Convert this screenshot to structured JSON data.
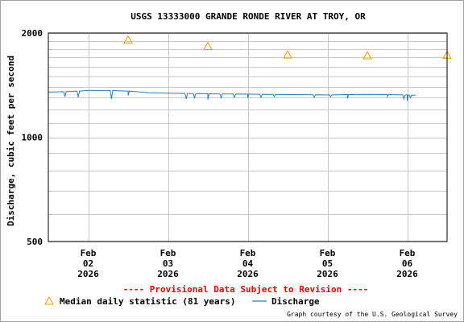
{
  "chart_data": {
    "type": "line",
    "title": "USGS 13333000 GRANDE RONDE RIVER AT TROY, OR",
    "ylabel": "Discharge, cubic feet per second",
    "xlabel": "",
    "yscale": "log",
    "ylim": [
      500,
      2000
    ],
    "y_ticks": [
      {
        "value": 500,
        "label": "500"
      },
      {
        "value": 1000,
        "label": "1000"
      },
      {
        "value": 2000,
        "label": "2000"
      }
    ],
    "y_minor_gridlines": [
      600,
      700,
      800,
      900,
      1100,
      1200,
      1300,
      1400,
      1500,
      1600,
      1700,
      1800,
      1900
    ],
    "xlim": [
      "2026-02-01 12:00",
      "2026-02-06 12:00"
    ],
    "x_ticks": [
      {
        "date": "2026-02-02",
        "label": [
          "Feb",
          "02",
          "2026"
        ]
      },
      {
        "date": "2026-02-03",
        "label": [
          "Feb",
          "03",
          "2026"
        ]
      },
      {
        "date": "2026-02-04",
        "label": [
          "Feb",
          "04",
          "2026"
        ]
      },
      {
        "date": "2026-02-05",
        "label": [
          "Feb",
          "05",
          "2026"
        ]
      },
      {
        "date": "2026-02-06",
        "label": [
          "Feb",
          "06",
          "2026"
        ]
      }
    ],
    "x_gridlines": [
      "2026-02-02",
      "2026-02-03",
      "2026-02-04",
      "2026-02-05",
      "2026-02-06"
    ],
    "grid": true,
    "series": [
      {
        "name": "Median daily statistic (81 years)",
        "kind": "marker",
        "marker": "triangle",
        "color": "#e0a000",
        "x": [
          "2026-02-02 12:00",
          "2026-02-03 12:00",
          "2026-02-04 12:00",
          "2026-02-05 12:00",
          "2026-02-06 12:00"
        ],
        "y": [
          1910,
          1830,
          1730,
          1720,
          1725
        ]
      },
      {
        "name": "Discharge",
        "kind": "line",
        "color": "#2a7fb0",
        "x": [
          "2026-02-01 12:00",
          "2026-02-01 18:00",
          "2026-02-02 00:00",
          "2026-02-02 06:00",
          "2026-02-02 12:00",
          "2026-02-02 18:00",
          "2026-02-03 00:00",
          "2026-02-03 06:00",
          "2026-02-03 12:00",
          "2026-02-03 18:00",
          "2026-02-04 00:00",
          "2026-02-04 06:00",
          "2026-02-04 12:00",
          "2026-02-04 18:00",
          "2026-02-05 00:00",
          "2026-02-05 06:00",
          "2026-02-05 12:00",
          "2026-02-05 18:00",
          "2026-02-06 00:00",
          "2026-02-06 02:30"
        ],
        "y": [
          1350,
          1355,
          1365,
          1365,
          1360,
          1345,
          1340,
          1338,
          1335,
          1333,
          1332,
          1330,
          1328,
          1327,
          1325,
          1328,
          1330,
          1328,
          1325,
          1322
        ],
        "dips": [
          {
            "x": "2026-02-01 17:00",
            "y": 1310
          },
          {
            "x": "2026-02-01 21:00",
            "y": 1305
          },
          {
            "x": "2026-02-02 07:00",
            "y": 1290
          },
          {
            "x": "2026-02-02 12:00",
            "y": 1320
          },
          {
            "x": "2026-02-03 05:30",
            "y": 1290
          },
          {
            "x": "2026-02-03 08:00",
            "y": 1300
          },
          {
            "x": "2026-02-03 12:00",
            "y": 1285
          },
          {
            "x": "2026-02-03 16:00",
            "y": 1300
          },
          {
            "x": "2026-02-03 20:00",
            "y": 1305
          },
          {
            "x": "2026-02-04 00:00",
            "y": 1300
          },
          {
            "x": "2026-02-04 04:00",
            "y": 1305
          },
          {
            "x": "2026-02-04 08:00",
            "y": 1310
          },
          {
            "x": "2026-02-04 20:00",
            "y": 1305
          },
          {
            "x": "2026-02-05 01:00",
            "y": 1310
          },
          {
            "x": "2026-02-05 06:00",
            "y": 1295
          },
          {
            "x": "2026-02-05 18:00",
            "y": 1310
          },
          {
            "x": "2026-02-05 23:00",
            "y": 1290
          },
          {
            "x": "2026-02-06 00:00",
            "y": 1275
          },
          {
            "x": "2026-02-06 01:00",
            "y": 1300
          }
        ]
      }
    ],
    "legend": {
      "placement": "bottom",
      "items": [
        {
          "label": "Median daily statistic (81 years)",
          "marker": "triangle",
          "color": "#e0a000"
        },
        {
          "label": "Discharge",
          "marker": "line",
          "color": "#2a7fb0"
        }
      ]
    }
  },
  "notice": "---- Provisional Data Subject to Revision ----",
  "credit": "Graph courtesy of the U.S. Geological Survey",
  "colors": {
    "plot_border": "#000000",
    "grid": "#c8c8c8",
    "notice": "#dd0000",
    "median": "#e0a000",
    "discharge": "#2a7fb0"
  }
}
